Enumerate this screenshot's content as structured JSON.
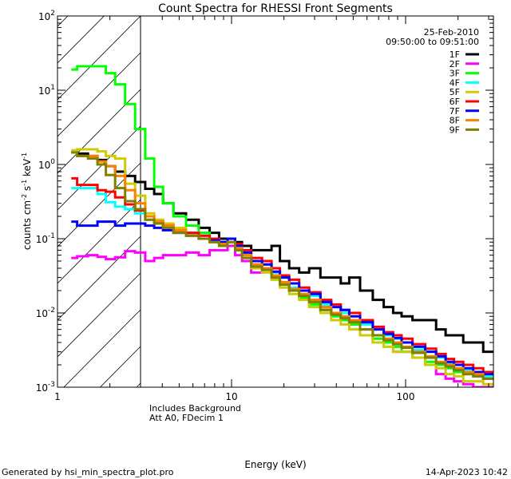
{
  "chart_data": {
    "type": "line",
    "title": "Count Spectra for RHESSI Front Segments",
    "xlabel": "Energy (keV)",
    "ylabel": "counts cm-2 s-1 keV-1",
    "ylabel_parts": {
      "a": "counts cm",
      "b": "-2",
      "c": " s",
      "d": "-1",
      "e": " keV",
      "f": "-1"
    },
    "xscale": "log",
    "yscale": "log",
    "xlim": [
      1,
      320
    ],
    "ylim": [
      0.001,
      100
    ],
    "x_ticks": [
      {
        "value": 1,
        "label": "1"
      },
      {
        "value": 10,
        "label": "10"
      },
      {
        "value": 100,
        "label": "100"
      }
    ],
    "y_ticks": [
      {
        "value": 100,
        "base": "10",
        "exp": "2"
      },
      {
        "value": 10,
        "base": "10",
        "exp": "1"
      },
      {
        "value": 1,
        "base": "10",
        "exp": "0"
      },
      {
        "value": 0.1,
        "base": "10",
        "exp": "-1"
      },
      {
        "value": 0.01,
        "base": "10",
        "exp": "-2"
      },
      {
        "value": 0.001,
        "base": "10",
        "exp": "-3"
      }
    ],
    "excluded_region_keV": [
      1,
      3
    ],
    "legend_position": "top-right",
    "date": "25-Feb-2010",
    "time_range": "09:50:00 to 09:51:00",
    "annotations": [
      "Includes Background",
      "Att A0, FDecim 1"
    ],
    "energies": [
      1.2,
      1.4,
      1.6,
      1.8,
      2.0,
      2.3,
      2.6,
      3.0,
      3.4,
      3.8,
      4.3,
      5,
      6,
      7,
      8,
      9,
      10,
      11,
      12,
      14,
      16,
      18,
      20,
      23,
      26,
      30,
      35,
      40,
      45,
      50,
      60,
      70,
      80,
      90,
      100,
      120,
      140,
      160,
      180,
      200,
      230,
      260,
      300
    ],
    "series": [
      {
        "name": "1F",
        "color": "#000000",
        "values": [
          1.5,
          1.4,
          1.3,
          1.15,
          0.95,
          0.8,
          0.7,
          0.58,
          0.47,
          0.4,
          0.3,
          0.22,
          0.18,
          0.14,
          0.12,
          0.1,
          0.1,
          0.09,
          0.08,
          0.07,
          0.07,
          0.08,
          0.05,
          0.04,
          0.035,
          0.04,
          0.03,
          0.03,
          0.025,
          0.03,
          0.02,
          0.015,
          0.012,
          0.01,
          0.009,
          0.008,
          0.008,
          0.006,
          0.005,
          0.005,
          0.004,
          0.004,
          0.003
        ]
      },
      {
        "name": "2F",
        "color": "#ff00ff",
        "values": [
          0.055,
          0.058,
          0.06,
          0.057,
          0.053,
          0.056,
          0.068,
          0.065,
          0.05,
          0.055,
          0.06,
          0.06,
          0.065,
          0.06,
          0.07,
          0.07,
          0.08,
          0.06,
          0.05,
          0.035,
          0.04,
          0.03,
          0.025,
          0.02,
          0.017,
          0.015,
          0.012,
          0.01,
          0.008,
          0.007,
          0.005,
          0.004,
          0.004,
          0.003,
          0.003,
          0.0025,
          0.002,
          0.0015,
          0.0013,
          0.0012,
          0.0011,
          0.001,
          0.0009
        ]
      },
      {
        "name": "3F",
        "color": "#00ff00",
        "values": [
          19,
          21,
          21,
          21,
          17,
          12,
          6.5,
          3.0,
          1.2,
          0.5,
          0.3,
          0.2,
          0.15,
          0.12,
          0.1,
          0.09,
          0.1,
          0.08,
          0.06,
          0.045,
          0.04,
          0.03,
          0.025,
          0.02,
          0.016,
          0.013,
          0.011,
          0.009,
          0.008,
          0.007,
          0.005,
          0.0045,
          0.004,
          0.0035,
          0.003,
          0.0025,
          0.0022,
          0.002,
          0.0018,
          0.0016,
          0.0015,
          0.0014,
          0.0013
        ]
      },
      {
        "name": "4F",
        "color": "#00ffff",
        "values": [
          0.48,
          0.48,
          0.48,
          0.4,
          0.31,
          0.27,
          0.25,
          0.22,
          0.18,
          0.16,
          0.15,
          0.13,
          0.12,
          0.11,
          0.1,
          0.09,
          0.1,
          0.075,
          0.06,
          0.05,
          0.045,
          0.035,
          0.03,
          0.022,
          0.02,
          0.017,
          0.013,
          0.012,
          0.01,
          0.008,
          0.007,
          0.006,
          0.005,
          0.0045,
          0.004,
          0.0032,
          0.003,
          0.0025,
          0.0021,
          0.002,
          0.0017,
          0.0016,
          0.0014
        ]
      },
      {
        "name": "5F",
        "color": "#cccc00",
        "values": [
          1.55,
          1.6,
          1.6,
          1.5,
          1.3,
          1.2,
          0.55,
          0.38,
          0.22,
          0.18,
          0.16,
          0.14,
          0.12,
          0.1,
          0.09,
          0.08,
          0.09,
          0.07,
          0.055,
          0.04,
          0.035,
          0.028,
          0.022,
          0.018,
          0.015,
          0.012,
          0.01,
          0.008,
          0.007,
          0.006,
          0.005,
          0.004,
          0.0035,
          0.003,
          0.003,
          0.0025,
          0.002,
          0.0018,
          0.0015,
          0.0014,
          0.0012,
          0.0012,
          0.0011
        ]
      },
      {
        "name": "6F",
        "color": "#ff0000",
        "values": [
          0.65,
          0.53,
          0.53,
          0.45,
          0.43,
          0.36,
          0.29,
          0.24,
          0.2,
          0.17,
          0.15,
          0.13,
          0.12,
          0.11,
          0.1,
          0.09,
          0.1,
          0.085,
          0.07,
          0.055,
          0.05,
          0.04,
          0.032,
          0.028,
          0.022,
          0.019,
          0.015,
          0.013,
          0.011,
          0.01,
          0.008,
          0.0065,
          0.0055,
          0.005,
          0.0045,
          0.0038,
          0.0033,
          0.0028,
          0.0024,
          0.0022,
          0.002,
          0.0018,
          0.0016
        ]
      },
      {
        "name": "7F",
        "color": "#0000ff",
        "values": [
          0.17,
          0.15,
          0.15,
          0.17,
          0.17,
          0.15,
          0.16,
          0.16,
          0.15,
          0.14,
          0.13,
          0.12,
          0.11,
          0.1,
          0.095,
          0.09,
          0.1,
          0.08,
          0.065,
          0.05,
          0.045,
          0.036,
          0.03,
          0.025,
          0.02,
          0.018,
          0.014,
          0.012,
          0.011,
          0.009,
          0.0075,
          0.006,
          0.0052,
          0.0046,
          0.004,
          0.0035,
          0.003,
          0.0026,
          0.0022,
          0.002,
          0.0018,
          0.0016,
          0.0015
        ]
      },
      {
        "name": "8F",
        "color": "#ff8000",
        "values": [
          1.45,
          1.3,
          1.3,
          1.1,
          0.95,
          0.7,
          0.45,
          0.3,
          0.2,
          0.17,
          0.15,
          0.13,
          0.11,
          0.1,
          0.09,
          0.085,
          0.09,
          0.075,
          0.06,
          0.045,
          0.04,
          0.032,
          0.026,
          0.021,
          0.018,
          0.015,
          0.012,
          0.01,
          0.009,
          0.008,
          0.006,
          0.005,
          0.0045,
          0.004,
          0.0035,
          0.003,
          0.0026,
          0.0022,
          0.002,
          0.0018,
          0.0016,
          0.0015,
          0.0013
        ]
      },
      {
        "name": "9F",
        "color": "#808000",
        "values": [
          1.45,
          1.3,
          1.2,
          1.0,
          0.72,
          0.48,
          0.32,
          0.25,
          0.18,
          0.16,
          0.14,
          0.12,
          0.11,
          0.1,
          0.09,
          0.08,
          0.09,
          0.07,
          0.055,
          0.042,
          0.038,
          0.03,
          0.024,
          0.02,
          0.017,
          0.014,
          0.011,
          0.0095,
          0.0085,
          0.0075,
          0.006,
          0.005,
          0.0043,
          0.0038,
          0.0034,
          0.0029,
          0.0025,
          0.0021,
          0.0019,
          0.0017,
          0.0015,
          0.0014,
          0.0013
        ]
      }
    ]
  },
  "footer": {
    "generated_by": "Generated by hsi_min_spectra_plot.pro",
    "timestamp": "14-Apr-2023 10:42"
  }
}
